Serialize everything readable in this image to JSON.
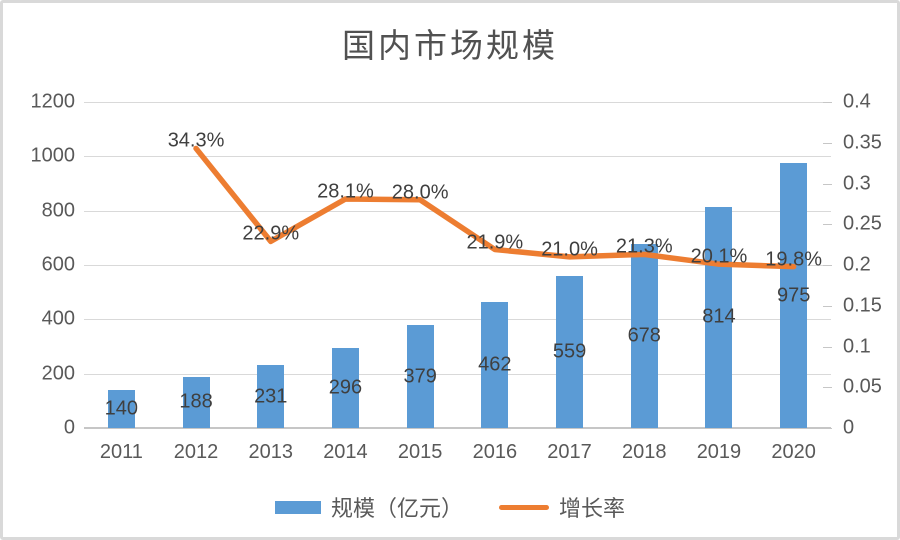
{
  "chart": {
    "title": "国内市场规模"
  },
  "chart_data": {
    "type": "bar+line combo",
    "title": "国内市场规模",
    "categories": [
      "2011",
      "2012",
      "2013",
      "2014",
      "2015",
      "2016",
      "2017",
      "2018",
      "2019",
      "2020"
    ],
    "series": [
      {
        "name": "规模（亿元）",
        "type": "bar",
        "axis": "left",
        "color": "#5B9BD5",
        "values": [
          140,
          188,
          231,
          296,
          379,
          462,
          559,
          678,
          814,
          975
        ],
        "labels": [
          "140",
          "188",
          "231",
          "296",
          "379",
          "462",
          "559",
          "678",
          "814",
          "975"
        ]
      },
      {
        "name": "增长率",
        "type": "line",
        "axis": "right",
        "color": "#ED7D31",
        "values": [
          null,
          0.343,
          0.229,
          0.281,
          0.28,
          0.219,
          0.21,
          0.213,
          0.201,
          0.198
        ],
        "labels": [
          "",
          "34.3%",
          "22.9%",
          "28.1%",
          "28.0%",
          "21.9%",
          "21.0%",
          "21.3%",
          "20.1%",
          "19.8%"
        ]
      }
    ],
    "left_axis": {
      "min": 0,
      "max": 1200,
      "step": 200,
      "ticks": [
        "0",
        "200",
        "400",
        "600",
        "800",
        "1000",
        "1200"
      ]
    },
    "right_axis": {
      "min": 0,
      "max": 0.4,
      "step": 0.05,
      "ticks": [
        "0",
        "0.05",
        "0.1",
        "0.15",
        "0.2",
        "0.25",
        "0.3",
        "0.35",
        "0.4"
      ]
    },
    "grid": true,
    "legend_position": "bottom",
    "colors": {
      "grid": "#d9d9d9",
      "axis_line": "#c6c6c6",
      "tick_text": "#595959",
      "data_label_text": "#3f3f3f",
      "frame_border": "#d9d9d9",
      "background": "#ffffff"
    }
  }
}
